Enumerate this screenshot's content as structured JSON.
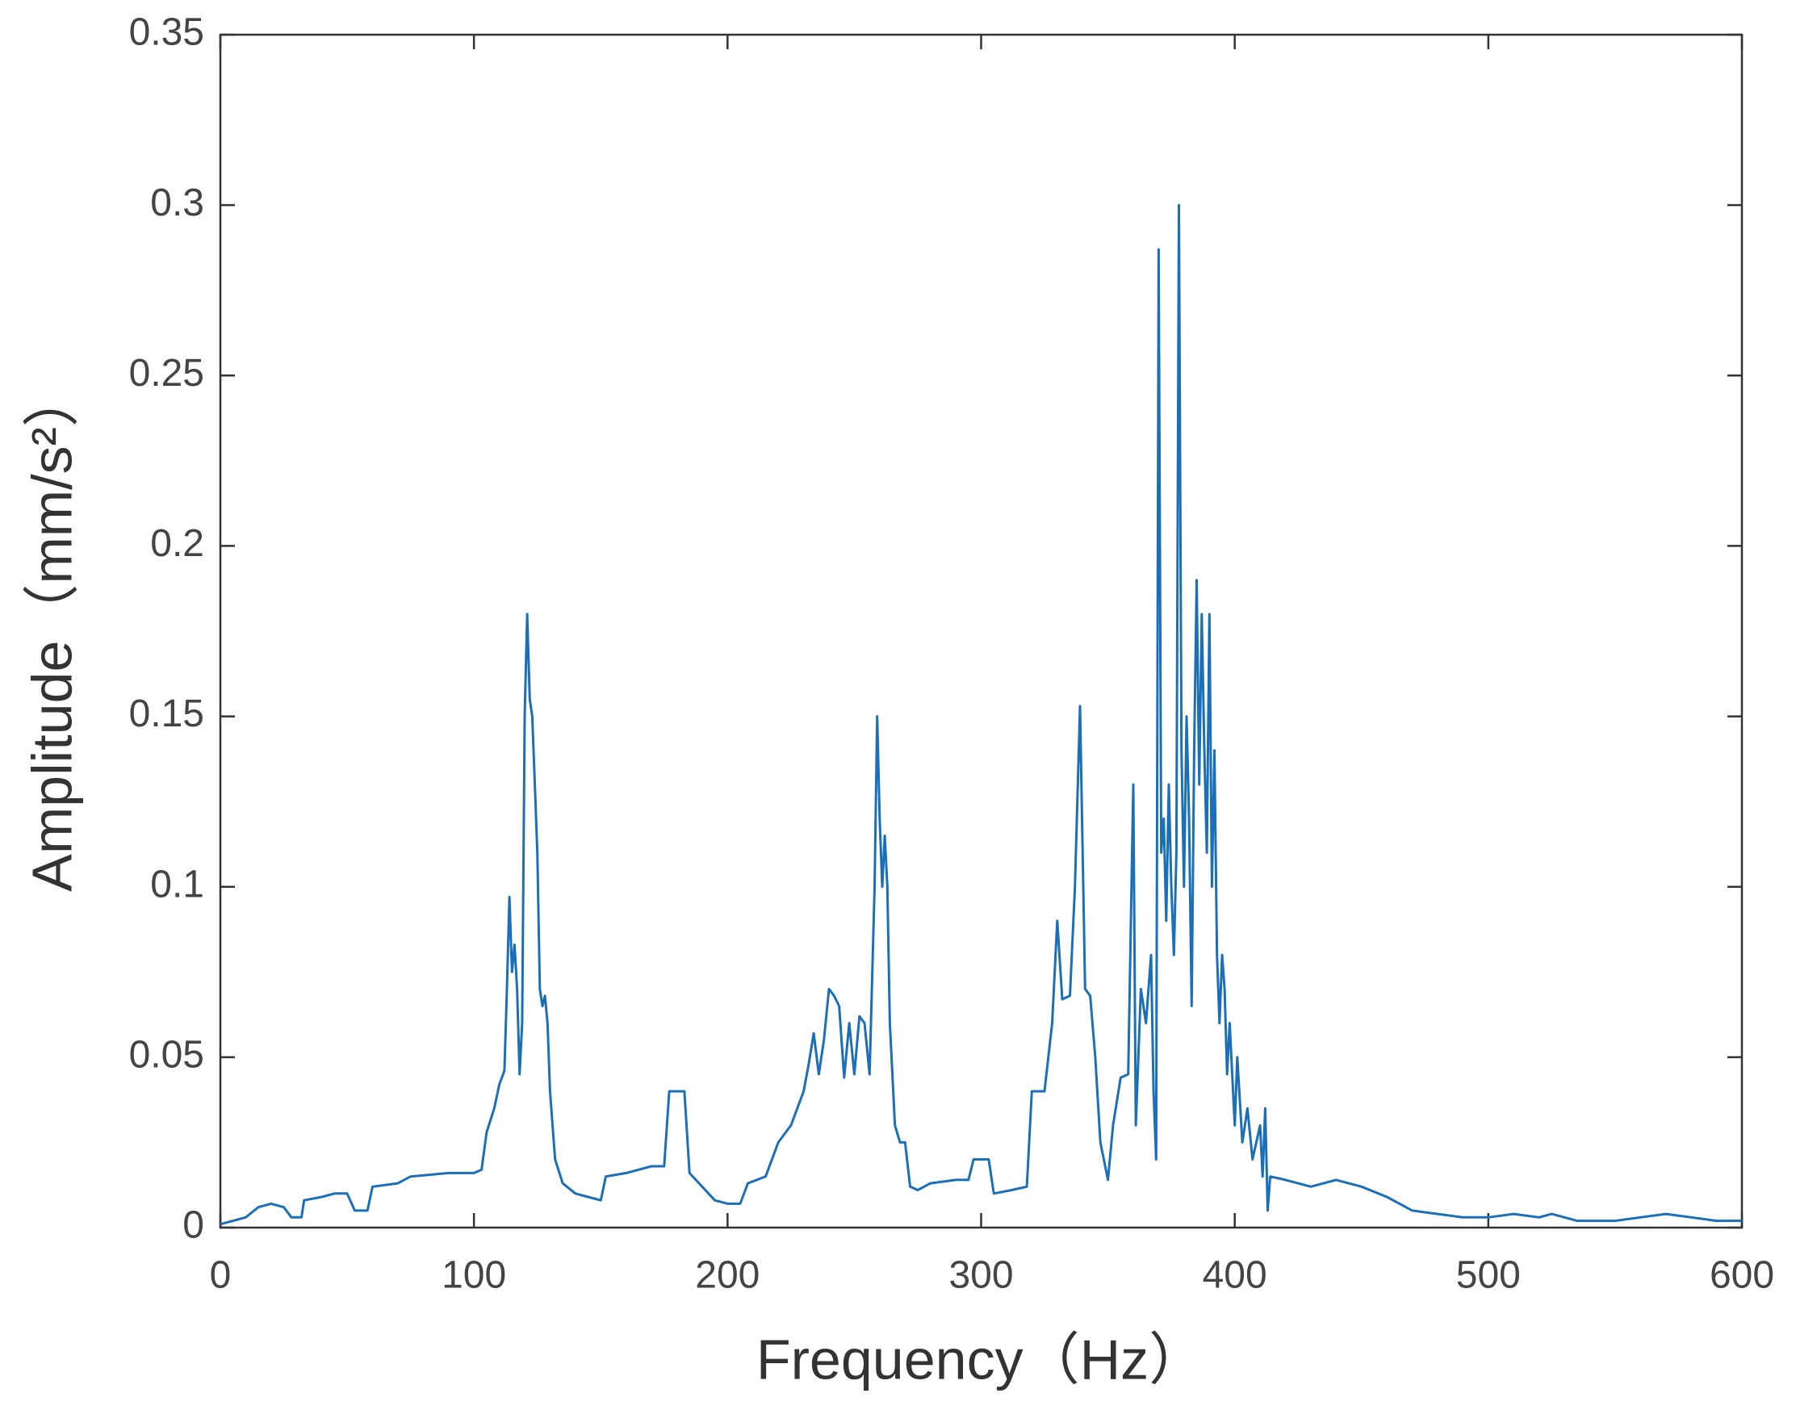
{
  "chart_data": {
    "type": "line",
    "xlabel": "Frequency（Hz）",
    "ylabel": "Amplitude（mm/s²）",
    "xlim": [
      0,
      600
    ],
    "xticks": [
      0,
      100,
      200,
      300,
      400,
      500,
      600
    ],
    "ylim": [
      0,
      0.35
    ],
    "yticks": [
      0,
      0.05,
      0.1,
      0.15,
      0.2,
      0.25,
      0.3,
      0.35
    ],
    "grid": false,
    "series": [
      {
        "color": "#1a6fb8",
        "x": [
          0,
          5,
          10,
          15,
          20,
          25,
          28,
          32,
          33,
          40,
          45,
          50,
          53,
          58,
          60,
          70,
          75,
          90,
          100,
          103,
          105,
          108,
          110,
          112,
          113,
          114,
          115,
          116,
          117,
          118,
          119,
          120,
          121,
          122,
          123,
          124,
          125,
          126,
          127,
          128,
          129,
          130,
          132,
          135,
          140,
          145,
          150,
          152,
          160,
          170,
          175,
          177,
          183,
          185,
          190,
          195,
          200,
          205,
          208,
          215,
          220,
          225,
          230,
          232,
          234,
          236,
          238,
          240,
          242,
          244,
          246,
          248,
          250,
          252,
          254,
          256,
          258,
          259,
          260,
          261,
          262,
          263,
          264,
          266,
          268,
          270,
          272,
          275,
          280,
          290,
          295,
          297,
          303,
          305,
          312,
          318,
          320,
          325,
          328,
          330,
          332,
          335,
          337,
          339,
          341,
          343,
          345,
          347,
          350,
          352,
          355,
          358,
          360,
          361,
          363,
          365,
          367,
          368,
          369,
          370,
          371,
          372,
          373,
          374,
          375,
          376,
          377,
          378,
          379,
          380,
          381,
          382,
          383,
          384,
          385,
          386,
          387,
          388,
          389,
          390,
          391,
          392,
          393,
          394,
          395,
          396,
          397,
          398,
          400,
          401,
          403,
          405,
          407,
          410,
          411,
          412,
          413,
          414,
          420,
          430,
          440,
          450,
          460,
          470,
          480,
          490,
          500,
          510,
          520,
          525,
          535,
          550,
          560,
          570,
          580,
          590,
          600
        ],
        "values": [
          0.001,
          0.002,
          0.003,
          0.006,
          0.007,
          0.006,
          0.003,
          0.003,
          0.008,
          0.009,
          0.01,
          0.01,
          0.005,
          0.005,
          0.012,
          0.013,
          0.015,
          0.016,
          0.016,
          0.017,
          0.028,
          0.035,
          0.042,
          0.046,
          0.07,
          0.097,
          0.075,
          0.083,
          0.07,
          0.045,
          0.06,
          0.15,
          0.18,
          0.155,
          0.15,
          0.13,
          0.11,
          0.07,
          0.065,
          0.068,
          0.06,
          0.04,
          0.02,
          0.013,
          0.01,
          0.009,
          0.008,
          0.015,
          0.016,
          0.018,
          0.018,
          0.04,
          0.04,
          0.016,
          0.012,
          0.008,
          0.007,
          0.007,
          0.013,
          0.015,
          0.025,
          0.03,
          0.04,
          0.048,
          0.057,
          0.045,
          0.055,
          0.07,
          0.068,
          0.065,
          0.044,
          0.06,
          0.045,
          0.062,
          0.06,
          0.045,
          0.1,
          0.15,
          0.12,
          0.1,
          0.115,
          0.1,
          0.06,
          0.03,
          0.025,
          0.025,
          0.012,
          0.011,
          0.013,
          0.014,
          0.014,
          0.02,
          0.02,
          0.01,
          0.011,
          0.012,
          0.04,
          0.04,
          0.06,
          0.09,
          0.067,
          0.068,
          0.1,
          0.153,
          0.07,
          0.068,
          0.05,
          0.025,
          0.014,
          0.03,
          0.044,
          0.045,
          0.13,
          0.03,
          0.07,
          0.06,
          0.08,
          0.04,
          0.02,
          0.287,
          0.11,
          0.12,
          0.09,
          0.13,
          0.1,
          0.08,
          0.11,
          0.3,
          0.14,
          0.1,
          0.15,
          0.12,
          0.065,
          0.14,
          0.19,
          0.13,
          0.18,
          0.14,
          0.11,
          0.18,
          0.1,
          0.14,
          0.08,
          0.06,
          0.08,
          0.07,
          0.045,
          0.06,
          0.03,
          0.05,
          0.025,
          0.035,
          0.02,
          0.03,
          0.015,
          0.035,
          0.005,
          0.015,
          0.014,
          0.012,
          0.014,
          0.012,
          0.009,
          0.005,
          0.004,
          0.003,
          0.003,
          0.004,
          0.003,
          0.004,
          0.002,
          0.002,
          0.003,
          0.004,
          0.003,
          0.002,
          0.002
        ]
      }
    ]
  }
}
